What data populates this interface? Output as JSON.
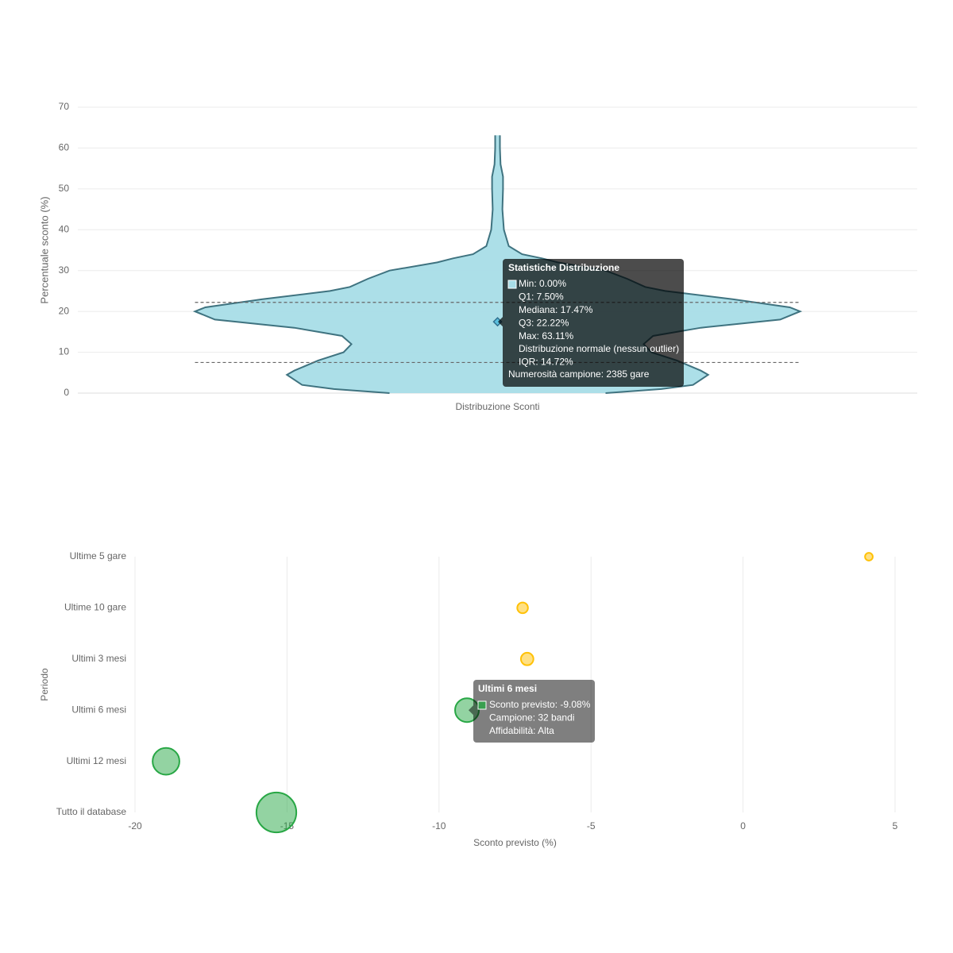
{
  "chart_data": [
    {
      "type": "violin",
      "y_label": "Percentuale sconto (%)",
      "categories": [
        "Distribuzione Sconti"
      ],
      "ylim": [
        0,
        70
      ],
      "yticks": [
        0,
        10,
        20,
        30,
        40,
        50,
        60,
        70
      ],
      "grid": true,
      "color": "#a8dde7",
      "edge_color": "#3f7380",
      "density": {
        "y": [
          0,
          1,
          2,
          4.5,
          5.5,
          8,
          10,
          12,
          14,
          16,
          18,
          20,
          21,
          23,
          25,
          26,
          28,
          30,
          32,
          33,
          34,
          36,
          40,
          45,
          50,
          53,
          56,
          60,
          63.11
        ],
        "width": [
          0.357,
          0.541,
          0.646,
          0.696,
          0.672,
          0.593,
          0.509,
          0.483,
          0.514,
          0.672,
          0.934,
          1,
          0.966,
          0.777,
          0.554,
          0.488,
          0.428,
          0.357,
          0.199,
          0.147,
          0.081,
          0.037,
          0.021,
          0.016,
          0.018,
          0.018,
          0.01,
          0.008,
          0.008
        ]
      },
      "q1": 7.5,
      "median": 17.47,
      "q3": 22.22,
      "tooltip": {
        "title": "Statistiche Distribuzione",
        "lines": [
          "Min: 0.00%",
          "Q1: 7.50%",
          "Mediana: 17.47%",
          "Q3: 22.22%",
          "Max: 63.11%",
          "Distribuzione normale (nessun outlier)",
          "IQR: 14.72%"
        ],
        "footer": "Numerosità campione: 2385 gare"
      }
    },
    {
      "type": "bubble",
      "x_label": "Sconto previsto (%)",
      "y_label": "Periodo",
      "categories": [
        "Ultime 5 gare",
        "Ultime 10 gare",
        "Ultimi 3 mesi",
        "Ultimi 6 mesi",
        "Ultimi 12 mesi",
        "Tutto il database"
      ],
      "values": [
        4.14,
        -7.25,
        -7.1,
        -9.08,
        -18.98,
        -15.35
      ],
      "sizes": [
        5,
        10,
        13,
        32,
        37,
        59
      ],
      "colors": [
        "#ffc107",
        "#ffc107",
        "#ffc107",
        "#28a745",
        "#28a745",
        "#28a745"
      ],
      "xlim": [
        -20,
        5
      ],
      "xticks": [
        -20,
        -15,
        -10,
        -5,
        0,
        5
      ],
      "grid": true,
      "tooltip": {
        "title": "Ultimi 6 mesi",
        "lines": [
          "Sconto previsto: -9.08%",
          "Campione: 32 bandi",
          "Affidabilità: Alta"
        ]
      }
    }
  ]
}
